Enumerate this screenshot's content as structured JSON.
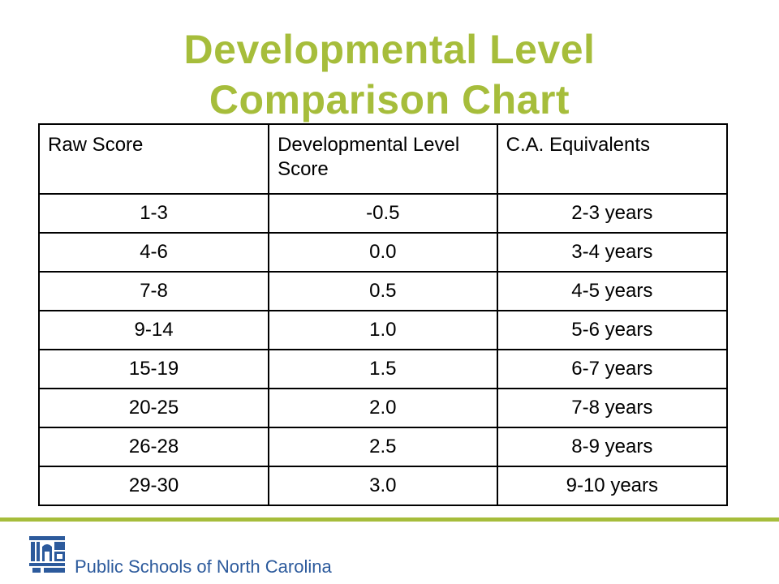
{
  "title": {
    "line1": "Developmental Level",
    "line2": "Comparison Chart"
  },
  "table": {
    "headers": [
      "Raw Score",
      "Developmental Level Score",
      "C.A. Equivalents"
    ],
    "rows": [
      [
        "1-3",
        "-0.5",
        "2-3 years"
      ],
      [
        "4-6",
        "0.0",
        "3-4 years"
      ],
      [
        "7-8",
        "0.5",
        "4-5 years"
      ],
      [
        "9-14",
        "1.0",
        "5-6 years"
      ],
      [
        "15-19",
        "1.5",
        "6-7 years"
      ],
      [
        "20-25",
        "2.0",
        "7-8 years"
      ],
      [
        "26-28",
        "2.5",
        "8-9 years"
      ],
      [
        "29-30",
        "3.0",
        "9-10 years"
      ]
    ]
  },
  "footer": {
    "organization": "Public Schools of North Carolina",
    "logo_icon": "nc-schools-logo-icon"
  },
  "colors": {
    "title": "#a6bd3b",
    "rule": "#a6bd3b",
    "footer_text": "#2c5a9c"
  }
}
